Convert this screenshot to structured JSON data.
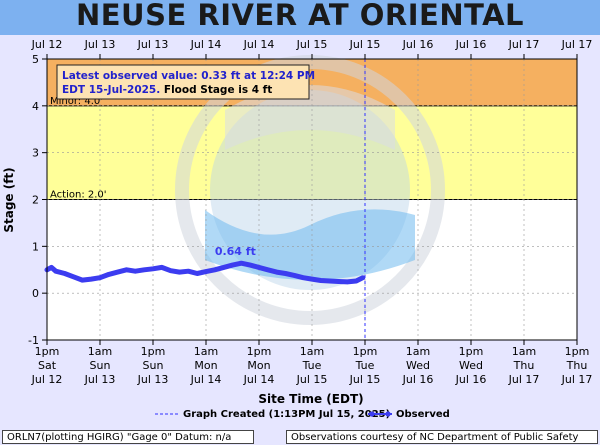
{
  "title": "NEUSE RIVER AT ORIENTAL",
  "colors": {
    "title_bar": "#7db1f0",
    "page_bg": "#e6e6ff",
    "flood_zone": "#f5b060",
    "minor_zone": "#ffff99",
    "observed_line": "#3c3cf0",
    "created_line": "#3030ff"
  },
  "chart_data": {
    "type": "line",
    "ylabel": "Stage (ft)",
    "xlabel": "Site Time (EDT)",
    "ylim": [
      -1,
      5
    ],
    "yticks": [
      -1,
      0,
      1,
      2,
      3,
      4,
      5
    ],
    "grid": true,
    "x_range_hours_from_jul12_1pm": [
      0,
      120
    ],
    "top_tick_labels": [
      "Jul 12",
      "Jul 13",
      "Jul 13",
      "Jul 14",
      "Jul 14",
      "Jul 15",
      "Jul 15",
      "Jul 16",
      "Jul 16",
      "Jul 17",
      "Jul 17"
    ],
    "bottom_tick_labels": [
      {
        "time": "1pm",
        "day": "Sat",
        "date": "Jul 12"
      },
      {
        "time": "1am",
        "day": "Sun",
        "date": "Jul 13"
      },
      {
        "time": "1pm",
        "day": "Sun",
        "date": "Jul 13"
      },
      {
        "time": "1am",
        "day": "Mon",
        "date": "Jul 14"
      },
      {
        "time": "1pm",
        "day": "Mon",
        "date": "Jul 14"
      },
      {
        "time": "1am",
        "day": "Tue",
        "date": "Jul 15"
      },
      {
        "time": "1pm",
        "day": "Tue",
        "date": "Jul 15"
      },
      {
        "time": "1am",
        "day": "Wed",
        "date": "Jul 16"
      },
      {
        "time": "1pm",
        "day": "Wed",
        "date": "Jul 16"
      },
      {
        "time": "1am",
        "day": "Thu",
        "date": "Jul 17"
      },
      {
        "time": "1pm",
        "day": "Thu",
        "date": "Jul 17"
      }
    ],
    "zones": [
      {
        "label": "Action: 2.0'",
        "from": 2,
        "to": 4,
        "color": "#ffff99"
      },
      {
        "label": "Minor: 4.0'",
        "from": 4,
        "to": 5,
        "color": "#f5b060"
      }
    ],
    "graph_created_hours": 72,
    "series": [
      {
        "name": "Observed",
        "x": [
          0,
          1,
          2,
          4,
          6,
          8,
          10,
          12,
          14,
          16,
          18,
          20,
          22,
          24,
          26,
          28,
          30,
          32,
          34,
          36,
          38,
          40,
          42,
          44,
          46,
          48,
          50,
          52,
          54,
          56,
          58,
          60,
          62,
          64,
          66,
          68,
          70,
          71.5
        ],
        "y": [
          0.5,
          0.55,
          0.47,
          0.42,
          0.35,
          0.28,
          0.3,
          0.33,
          0.4,
          0.45,
          0.5,
          0.47,
          0.5,
          0.52,
          0.55,
          0.48,
          0.45,
          0.47,
          0.42,
          0.46,
          0.5,
          0.55,
          0.6,
          0.64,
          0.6,
          0.55,
          0.5,
          0.45,
          0.42,
          0.38,
          0.33,
          0.3,
          0.27,
          0.26,
          0.25,
          0.24,
          0.26,
          0.33
        ]
      }
    ],
    "annotations": [
      {
        "text": "0.64 ft",
        "x": 44,
        "y": 0.64
      }
    ],
    "info_box": {
      "line1": "Latest observed value: 0.33 ft at 12:24 PM",
      "line2_bold_blue": "EDT 15-Jul-2025.",
      "line2_black": "Flood Stage is 4 ft"
    },
    "legend": {
      "created_label": "Graph Created (1:13PM Jul 15, 2025)",
      "observed_label": "Observed"
    }
  },
  "footer": {
    "left": "ORLN7(plotting HGIRG) \"Gage 0\" Datum: n/a",
    "right": "Observations courtesy of NC Department of Public Safety"
  }
}
